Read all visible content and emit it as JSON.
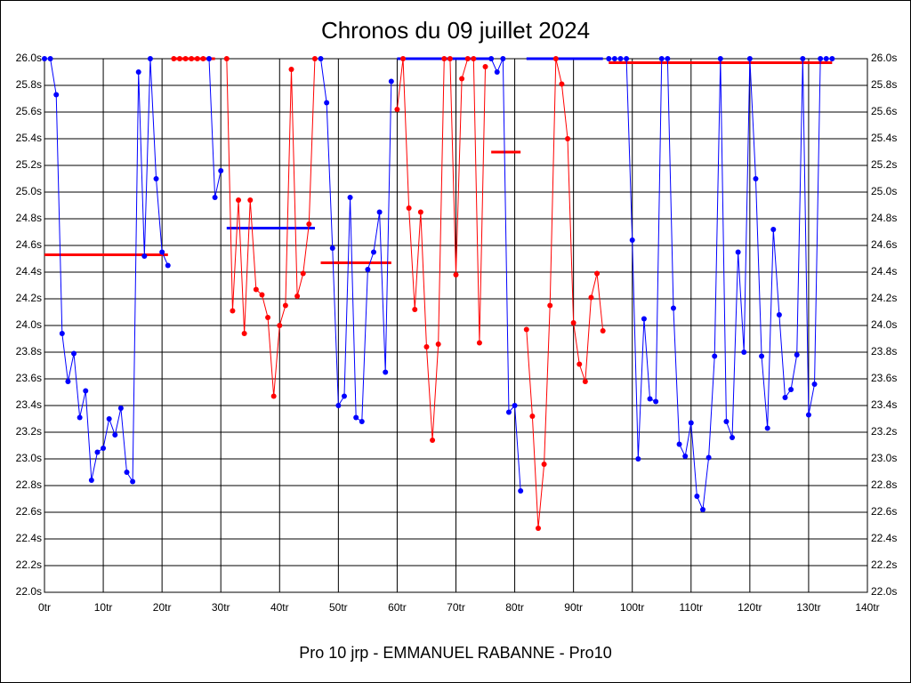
{
  "chart_data": {
    "type": "line",
    "title": "Chronos du 09 juillet 2024",
    "footer": "Pro 10 jrp - EMMANUEL RABANNE - Pro10",
    "xlim": [
      0,
      140
    ],
    "xticks": [
      {
        "value": 0,
        "label": "0tr"
      },
      {
        "value": 10,
        "label": "10tr"
      },
      {
        "value": 20,
        "label": "20tr"
      },
      {
        "value": 30,
        "label": "30tr"
      },
      {
        "value": 40,
        "label": "40tr"
      },
      {
        "value": 50,
        "label": "50tr"
      },
      {
        "value": 60,
        "label": "60tr"
      },
      {
        "value": 70,
        "label": "70tr"
      },
      {
        "value": 80,
        "label": "80tr"
      },
      {
        "value": 90,
        "label": "90tr"
      },
      {
        "value": 100,
        "label": "100tr"
      },
      {
        "value": 110,
        "label": "110tr"
      },
      {
        "value": 120,
        "label": "120tr"
      },
      {
        "value": 130,
        "label": "130tr"
      },
      {
        "value": 140,
        "label": "140tr"
      }
    ],
    "ylim": [
      22.0,
      26.0
    ],
    "yticks": [
      {
        "value": 22.0,
        "label": "22.0s"
      },
      {
        "value": 22.2,
        "label": "22.2s"
      },
      {
        "value": 22.4,
        "label": "22.4s"
      },
      {
        "value": 22.6,
        "label": "22.6s"
      },
      {
        "value": 22.8,
        "label": "22.8s"
      },
      {
        "value": 23.0,
        "label": "23.0s"
      },
      {
        "value": 23.2,
        "label": "23.2s"
      },
      {
        "value": 23.4,
        "label": "23.4s"
      },
      {
        "value": 23.6,
        "label": "23.6s"
      },
      {
        "value": 23.8,
        "label": "23.8s"
      },
      {
        "value": 24.0,
        "label": "24.0s"
      },
      {
        "value": 24.2,
        "label": "24.2s"
      },
      {
        "value": 24.4,
        "label": "24.4s"
      },
      {
        "value": 24.6,
        "label": "24.6s"
      },
      {
        "value": 24.8,
        "label": "24.8s"
      },
      {
        "value": 25.0,
        "label": "25.0s"
      },
      {
        "value": 25.2,
        "label": "25.2s"
      },
      {
        "value": 25.4,
        "label": "25.4s"
      },
      {
        "value": 25.6,
        "label": "25.6s"
      },
      {
        "value": 25.8,
        "label": "25.8s"
      },
      {
        "value": 26.0,
        "label": "26.0s"
      }
    ],
    "grid": true,
    "series": [
      {
        "color": "#0000ff",
        "x": [
          0,
          1,
          2,
          3,
          4,
          5,
          6,
          7,
          8,
          9,
          10,
          11,
          12,
          13,
          14,
          15,
          16,
          17,
          18,
          19,
          20,
          21
        ],
        "values": [
          26.0,
          26.0,
          25.73,
          23.94,
          23.58,
          23.79,
          23.31,
          23.51,
          22.84,
          23.05,
          23.08,
          23.3,
          23.18,
          23.38,
          22.9,
          22.83,
          25.9,
          24.52,
          26.0,
          25.1,
          24.55,
          24.45
        ]
      },
      {
        "color": "#ff0000",
        "x": [
          22,
          23,
          24,
          25,
          26,
          27
        ],
        "values": [
          26.0,
          26.0,
          26.0,
          26.0,
          26.0,
          26.0
        ]
      },
      {
        "color": "#0000ff",
        "x": [
          28,
          29,
          30
        ],
        "values": [
          26.0,
          24.96,
          25.16
        ]
      },
      {
        "color": "#ff0000",
        "x": [
          31,
          32,
          33,
          34,
          35,
          36,
          37,
          38,
          39,
          40,
          41,
          42,
          43,
          44,
          45,
          46
        ],
        "values": [
          26.0,
          24.11,
          24.94,
          23.94,
          24.94,
          24.27,
          24.23,
          24.06,
          23.47,
          24.0,
          24.15,
          25.92,
          24.22,
          24.39,
          24.76,
          26.0
        ]
      },
      {
        "color": "#0000ff",
        "x": [
          47,
          48,
          49,
          50,
          51,
          52,
          53,
          54,
          55,
          56,
          57,
          58,
          59
        ],
        "values": [
          26.0,
          25.67,
          24.58,
          23.4,
          23.47,
          24.96,
          23.31,
          23.28,
          24.42,
          24.55,
          24.85,
          23.65,
          25.83
        ]
      },
      {
        "color": "#ff0000",
        "x": [
          60,
          61,
          62,
          63,
          64,
          65,
          66,
          67,
          68,
          69,
          70,
          71,
          72,
          73,
          74,
          75
        ],
        "values": [
          25.62,
          26.0,
          24.88,
          24.12,
          24.85,
          23.84,
          23.14,
          23.86,
          26.0,
          26.0,
          24.38,
          25.85,
          26.0,
          26.0,
          23.87,
          25.94
        ]
      },
      {
        "color": "#0000ff",
        "x": [
          76,
          77,
          78,
          79,
          80,
          81
        ],
        "values": [
          26.0,
          25.9,
          26.0,
          23.35,
          23.4,
          22.76
        ]
      },
      {
        "color": "#ff0000",
        "x": [
          82,
          83,
          84,
          85,
          86,
          87,
          88,
          89,
          90,
          91,
          92,
          93,
          94,
          95
        ],
        "values": [
          23.97,
          23.32,
          22.48,
          22.96,
          24.15,
          26.0,
          25.81,
          25.4,
          24.02,
          23.71,
          23.58,
          24.21,
          24.39,
          23.96
        ]
      },
      {
        "color": "#0000ff",
        "x": [
          96,
          97,
          98,
          99,
          100,
          101,
          102,
          103,
          104,
          105,
          106,
          107,
          108,
          109,
          110,
          111,
          112,
          113,
          114,
          115,
          116,
          117,
          118,
          119,
          120,
          121,
          122,
          123,
          124,
          125,
          126,
          127,
          128,
          129,
          130,
          131,
          132,
          133,
          134
        ],
        "values": [
          26.0,
          26.0,
          26.0,
          26.0,
          24.64,
          23.0,
          24.05,
          23.45,
          23.43,
          26.0,
          26.0,
          24.13,
          23.11,
          23.02,
          23.27,
          22.72,
          22.62,
          23.01,
          23.77,
          26.0,
          23.28,
          23.16,
          24.55,
          23.8,
          26.0,
          25.1,
          23.77,
          23.23,
          24.72,
          24.08,
          23.46,
          23.52,
          23.78,
          26.0,
          23.33,
          23.56,
          26.0,
          26.0,
          26.0
        ]
      }
    ],
    "mean_lines": [
      {
        "x": [
          0,
          21
        ],
        "value": 24.53,
        "color": "#ff0000"
      },
      {
        "x": [
          22,
          29
        ],
        "value": 26.0,
        "color": "#ff0000"
      },
      {
        "x": [
          31,
          46
        ],
        "value": 24.73,
        "color": "#0000ff"
      },
      {
        "x": [
          47,
          59
        ],
        "value": 24.47,
        "color": "#ff0000"
      },
      {
        "x": [
          60,
          76
        ],
        "value": 26.0,
        "color": "#0000ff"
      },
      {
        "x": [
          76,
          81
        ],
        "value": 25.3,
        "color": "#ff0000"
      },
      {
        "x": [
          82,
          95
        ],
        "value": 26.0,
        "color": "#0000ff"
      },
      {
        "x": [
          96,
          134
        ],
        "value": 25.97,
        "color": "#ff0000"
      }
    ]
  }
}
